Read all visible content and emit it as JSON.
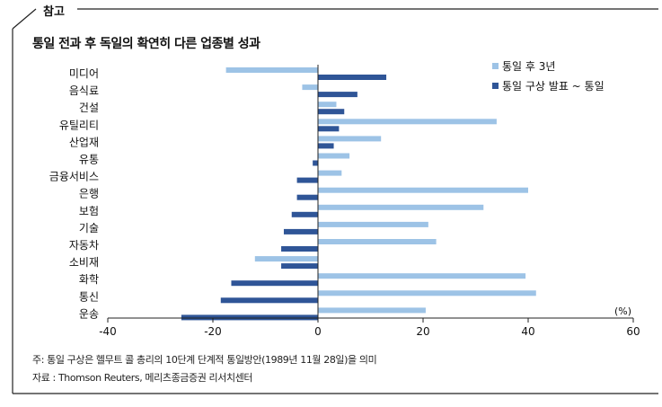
{
  "section_tag": "참고",
  "title": "통일 전과 후 독일의 확연히 다른 업종별 성과",
  "notes": {
    "note1": "주: 통일 구상은 헬무트 콜 총리의 10단계 단계적 통일방안(1989년 11월 28일)을 의미",
    "note2": "자료 : Thomson Reuters, 메리츠종금증권 리서치센터"
  },
  "colors": {
    "after": "#9dc3e6",
    "before": "#2f5597",
    "frame": "#222222",
    "axis": "#222222"
  },
  "chart_data": {
    "type": "bar",
    "orientation": "horizontal",
    "title": "통일 전과 후 독일의 확연히 다른 업종별 성과",
    "xlabel": "(%)",
    "ylabel": "",
    "xlim": [
      -40,
      60
    ],
    "xticks": [
      "-40",
      "-20",
      "0",
      "20",
      "40",
      "60"
    ],
    "grid": false,
    "legend_position": "top-right",
    "categories": [
      "미디어",
      "음식료",
      "건설",
      "유틸리티",
      "산업재",
      "유통",
      "금융서비스",
      "은행",
      "보험",
      "기술",
      "자동차",
      "소비재",
      "화학",
      "통신",
      "운송"
    ],
    "series": [
      {
        "name": "통일 후 3년",
        "values": [
          -17.5,
          -3,
          3.5,
          34,
          12,
          6,
          4.5,
          40,
          31.5,
          21,
          22.5,
          -12,
          39.5,
          41.5,
          20.5
        ]
      },
      {
        "name": "통일 구상 발표 ~ 통일",
        "values": [
          13,
          7.5,
          5,
          4,
          3,
          -1,
          -4,
          -4,
          -5,
          -6.5,
          -7,
          -7,
          -16.5,
          -18.5,
          -26
        ]
      }
    ]
  }
}
